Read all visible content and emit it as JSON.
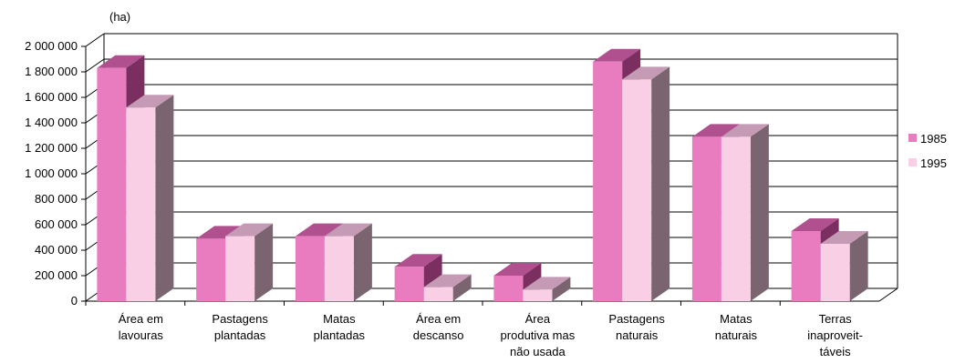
{
  "chart_data": {
    "type": "bar",
    "unit_label": "(ha)",
    "categories": [
      [
        "Área em",
        "lavouras"
      ],
      [
        "Pastagens",
        "plantadas"
      ],
      [
        "Matas",
        "plantadas"
      ],
      [
        "Área em",
        "descanso"
      ],
      [
        "Área",
        "produtiva mas",
        "não usada"
      ],
      [
        "Pastagens",
        "naturais"
      ],
      [
        "Matas",
        "naturais"
      ],
      [
        "Terras",
        "inaproveit-",
        "táveis"
      ]
    ],
    "series": [
      {
        "name": "1985",
        "values": [
          1830000,
          490000,
          510000,
          270000,
          200000,
          1880000,
          1290000,
          550000
        ],
        "color": "#e87cbf"
      },
      {
        "name": "1995",
        "values": [
          1520000,
          510000,
          510000,
          110000,
          90000,
          1740000,
          1290000,
          450000
        ],
        "color": "#f9cfe6"
      }
    ],
    "yticks": [
      "0",
      "200 000",
      "400 000",
      "600 000",
      "800 000",
      "1 000 000",
      "1 200 000",
      "1 400 000",
      "1 600 000",
      "1 800 000",
      "2 000 000"
    ],
    "ylim": [
      0,
      2000000
    ],
    "grid": true,
    "legend_position": "right"
  }
}
